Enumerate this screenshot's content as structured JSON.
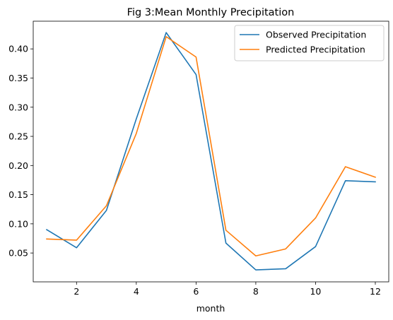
{
  "chart_data": {
    "type": "line",
    "title": "Fig 3:Mean Monthly Precipitation",
    "xlabel": "month",
    "ylabel": "",
    "x": [
      1,
      2,
      3,
      4,
      5,
      6,
      7,
      8,
      9,
      10,
      11,
      12
    ],
    "xlim": [
      0.55,
      12.45
    ],
    "ylim": [
      0.0005,
      0.4475
    ],
    "x_ticks": [
      2,
      4,
      6,
      8,
      10,
      12
    ],
    "y_ticks": [
      0.05,
      0.1,
      0.15,
      0.2,
      0.25,
      0.3,
      0.35,
      0.4
    ],
    "x_tick_labels": [
      "2",
      "4",
      "6",
      "8",
      "10",
      "12"
    ],
    "y_tick_labels": [
      "0.05",
      "0.10",
      "0.15",
      "0.20",
      "0.25",
      "0.30",
      "0.35",
      "0.40"
    ],
    "grid": false,
    "legend_position": "top-right",
    "series": [
      {
        "name": "Observed Precipitation",
        "color": "#1f77b4",
        "values": [
          0.09,
          0.059,
          0.123,
          0.28,
          0.428,
          0.356,
          0.067,
          0.021,
          0.023,
          0.061,
          0.174,
          0.172
        ]
      },
      {
        "name": "Predicted Precipitation",
        "color": "#ff7f0e",
        "values": [
          0.074,
          0.072,
          0.131,
          0.255,
          0.421,
          0.386,
          0.089,
          0.045,
          0.057,
          0.11,
          0.198,
          0.18
        ]
      }
    ]
  }
}
